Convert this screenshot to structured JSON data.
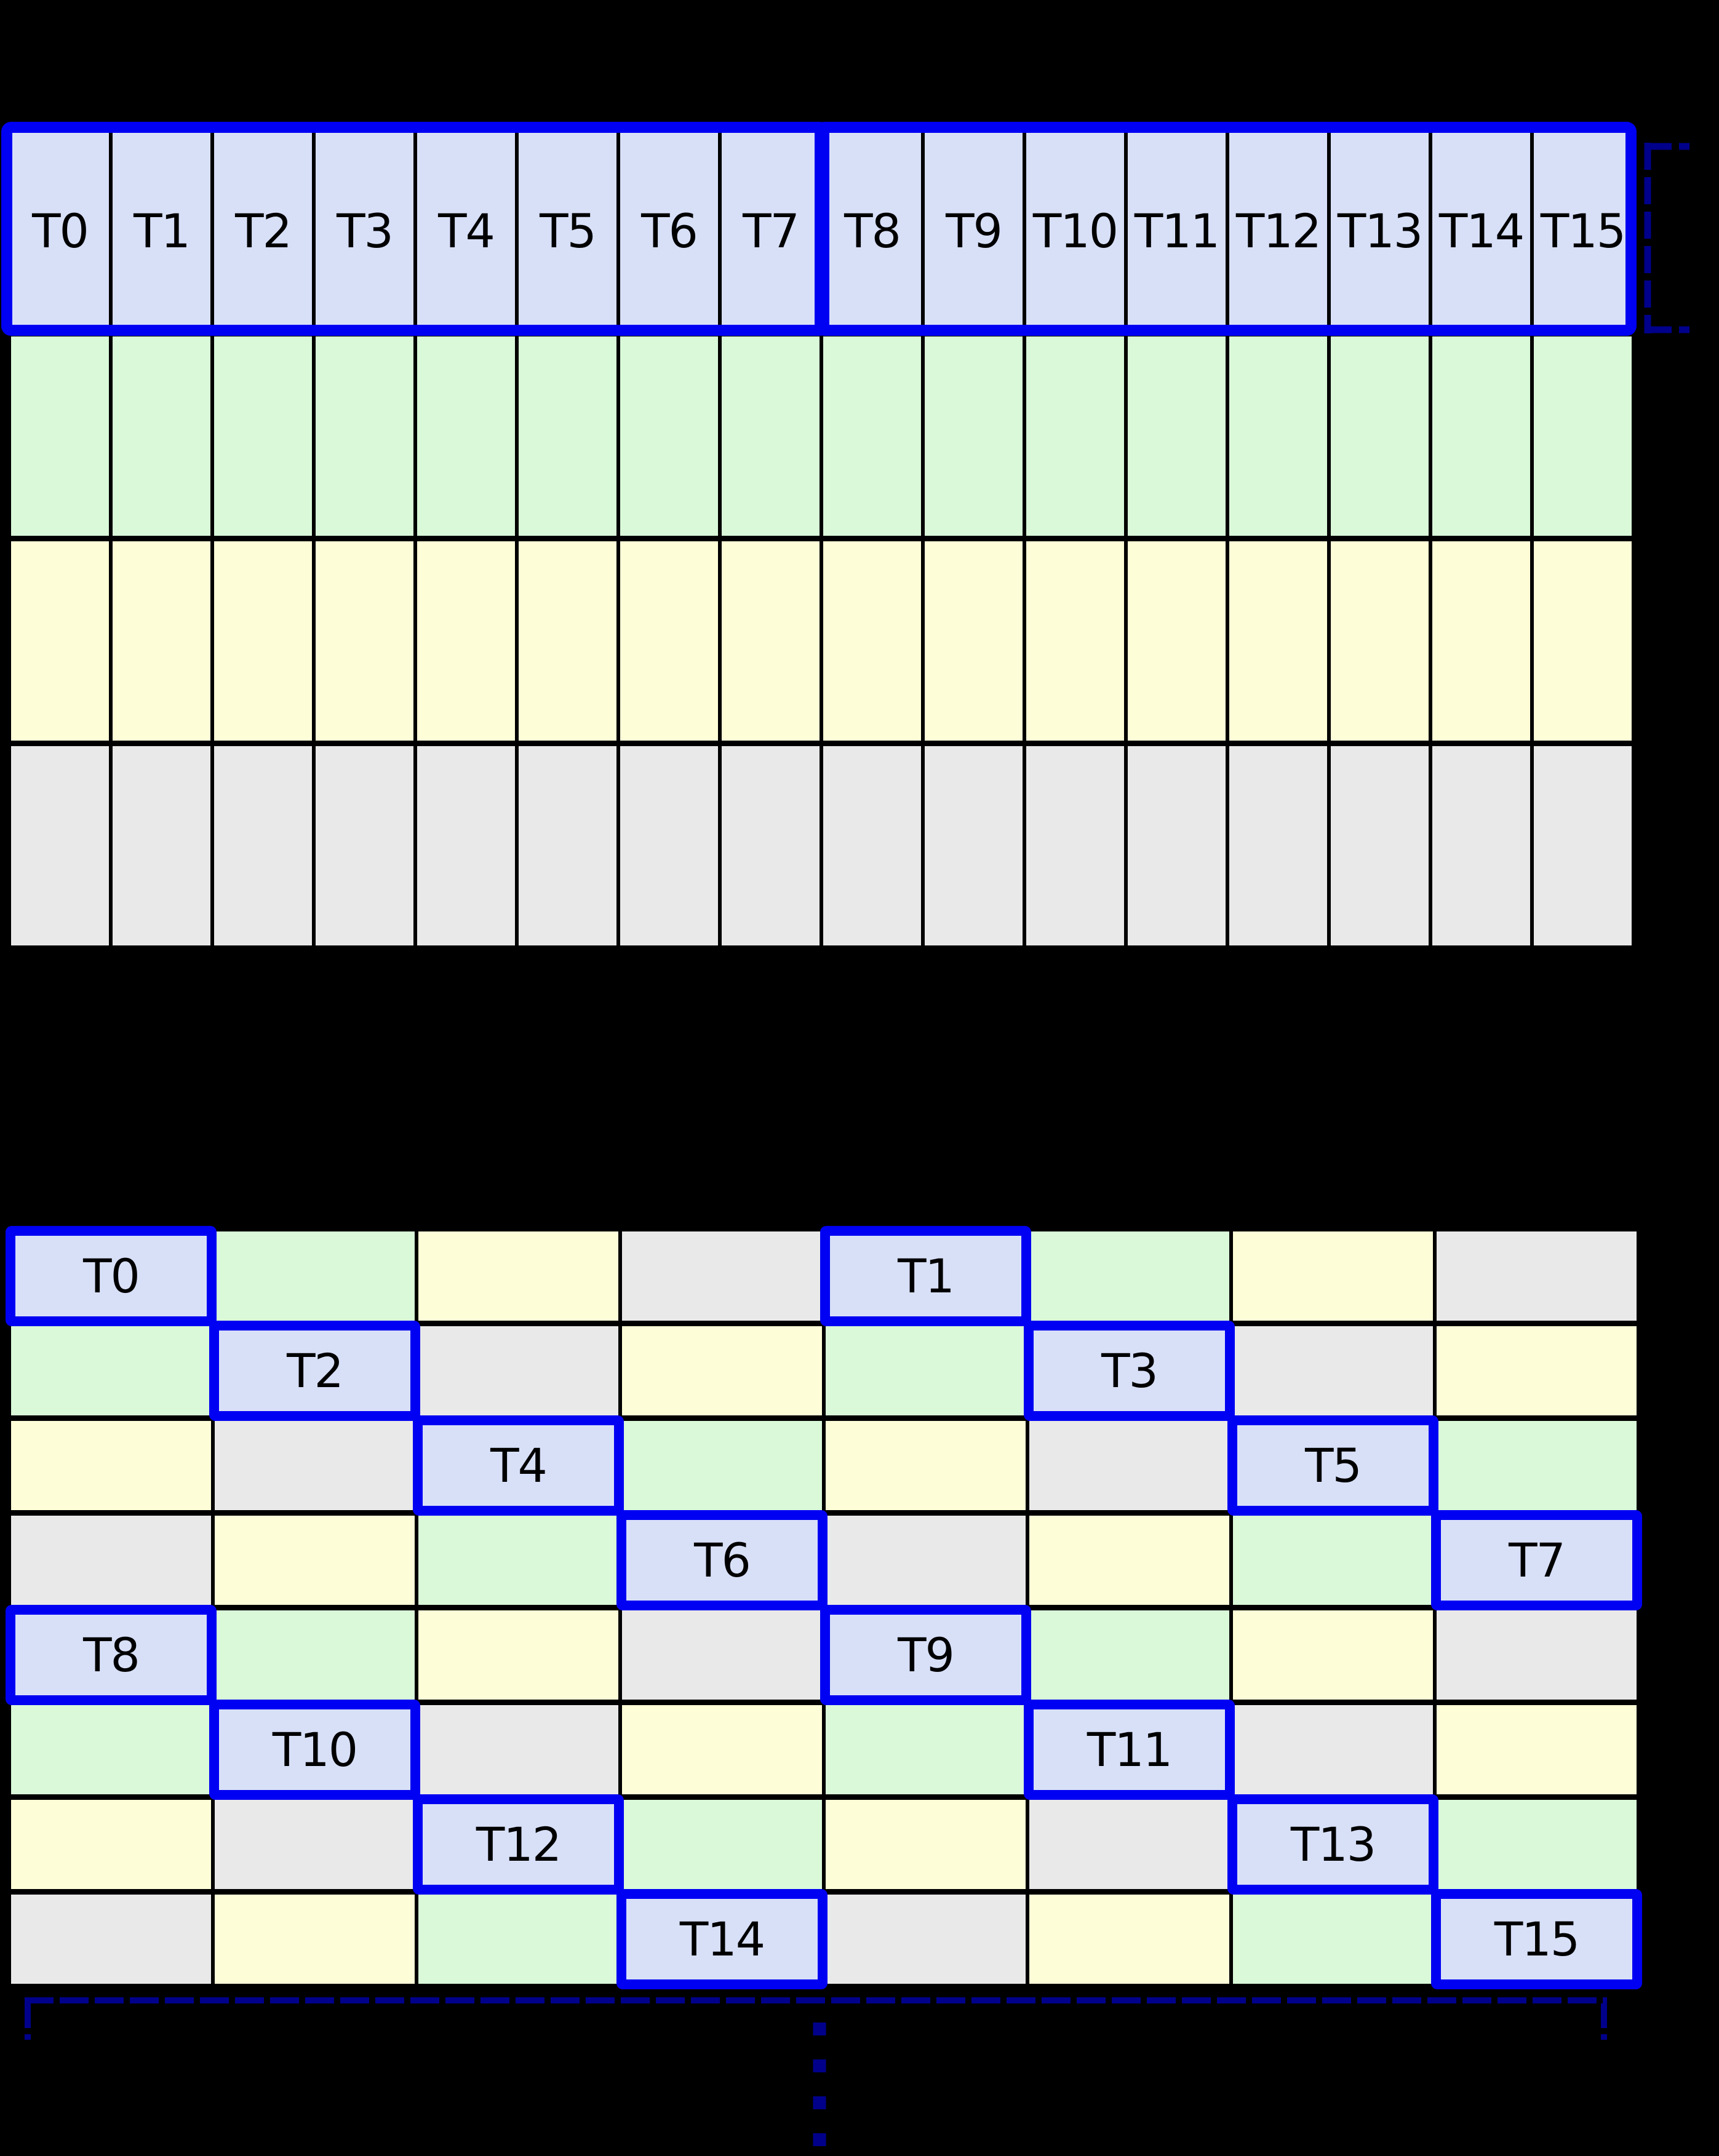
{
  "palette": {
    "background": "#000000",
    "grid_line": "#000000",
    "highlight_border": "#0000f2",
    "annotation": "#00008b",
    "label_text": "#000000",
    "cell_colors": {
      "thread": "#d8e0f8",
      "green": "#d9f9d9",
      "yellow": "#fdfdd8",
      "gray": "#e9e9e9"
    }
  },
  "top_grid": {
    "cols": 16,
    "rows": 4,
    "thread_labels": [
      "T0",
      "T1",
      "T2",
      "T3",
      "T4",
      "T5",
      "T6",
      "T7",
      "T8",
      "T9",
      "T10",
      "T11",
      "T12",
      "T13",
      "T14",
      "T15"
    ],
    "row_color_keys": [
      "thread",
      "green",
      "yellow",
      "gray"
    ],
    "half_warp_groups": [
      {
        "first_thread": "T0",
        "last_thread": "T7"
      },
      {
        "first_thread": "T8",
        "last_thread": "T15"
      }
    ]
  },
  "bottom_grid": {
    "rows": 8,
    "cols": 8,
    "color_index_keys": [
      "thread",
      "green",
      "yellow",
      "gray"
    ],
    "cell_color_indices": [
      [
        0,
        1,
        2,
        3,
        0,
        1,
        2,
        3
      ],
      [
        1,
        0,
        3,
        2,
        1,
        0,
        3,
        2
      ],
      [
        2,
        3,
        0,
        1,
        2,
        3,
        0,
        1
      ],
      [
        3,
        2,
        1,
        0,
        3,
        2,
        1,
        0
      ],
      [
        0,
        1,
        2,
        3,
        0,
        1,
        2,
        3
      ],
      [
        1,
        0,
        3,
        2,
        1,
        0,
        3,
        2
      ],
      [
        2,
        3,
        0,
        1,
        2,
        3,
        0,
        1
      ],
      [
        3,
        2,
        1,
        0,
        3,
        2,
        1,
        0
      ]
    ],
    "threads": [
      {
        "label": "T0",
        "row": 0,
        "col": 0
      },
      {
        "label": "T1",
        "row": 0,
        "col": 4
      },
      {
        "label": "T2",
        "row": 1,
        "col": 1
      },
      {
        "label": "T3",
        "row": 1,
        "col": 5
      },
      {
        "label": "T4",
        "row": 2,
        "col": 2
      },
      {
        "label": "T5",
        "row": 2,
        "col": 6
      },
      {
        "label": "T6",
        "row": 3,
        "col": 3
      },
      {
        "label": "T7",
        "row": 3,
        "col": 7
      },
      {
        "label": "T8",
        "row": 4,
        "col": 0
      },
      {
        "label": "T9",
        "row": 4,
        "col": 4
      },
      {
        "label": "T10",
        "row": 5,
        "col": 1
      },
      {
        "label": "T11",
        "row": 5,
        "col": 5
      },
      {
        "label": "T12",
        "row": 6,
        "col": 2
      },
      {
        "label": "T13",
        "row": 6,
        "col": 6
      },
      {
        "label": "T14",
        "row": 7,
        "col": 3
      },
      {
        "label": "T15",
        "row": 7,
        "col": 7
      }
    ]
  }
}
